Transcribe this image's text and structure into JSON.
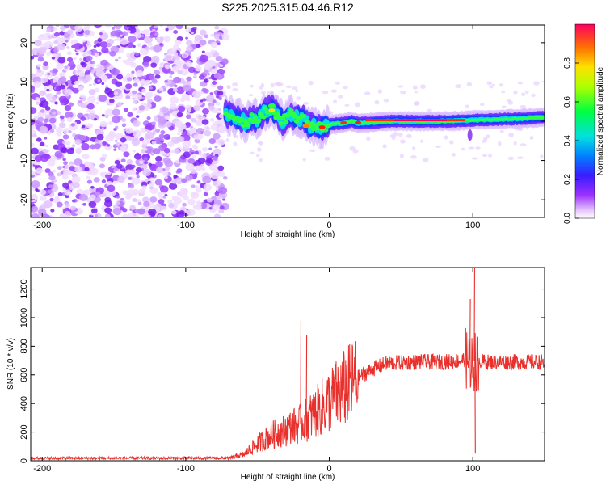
{
  "title": "S225.2025.315.04.46.R12",
  "charts": [
    {
      "type": "heatmap",
      "name": "spectrogram",
      "xlabel": "Height of straight line (km)",
      "ylabel": "Frequency (Hz)",
      "xlim": [
        -208,
        150
      ],
      "ylim": [
        -24.5,
        24.5
      ],
      "xticks": [
        -200,
        -100,
        0,
        100
      ],
      "xtick_labels": [
        "-200",
        "-100",
        "0",
        "100"
      ],
      "yticks": [
        -20,
        -10,
        0,
        10,
        20
      ],
      "ytick_labels": [
        "-20",
        "-10",
        "0",
        "10",
        "20"
      ],
      "noise_region_x": [
        -208,
        -72
      ],
      "signal_ridge": [
        [
          -72,
          2
        ],
        [
          -68,
          1.5
        ],
        [
          -62,
          0.5
        ],
        [
          -58,
          -0.5
        ],
        [
          -54,
          1
        ],
        [
          -50,
          0.5
        ],
        [
          -45,
          2.5
        ],
        [
          -40,
          3
        ],
        [
          -36,
          1.5
        ],
        [
          -32,
          0
        ],
        [
          -28,
          2
        ],
        [
          -22,
          1
        ],
        [
          -18,
          0.5
        ],
        [
          -14,
          -1
        ],
        [
          -10,
          -1.5
        ],
        [
          -5,
          -1.5
        ],
        [
          0,
          -1
        ],
        [
          5,
          -0.5
        ],
        [
          10,
          -0.5
        ],
        [
          15,
          0
        ],
        [
          20,
          -0.5
        ],
        [
          30,
          -0.3
        ],
        [
          40,
          0
        ],
        [
          60,
          0
        ],
        [
          80,
          0
        ],
        [
          95,
          0.2
        ],
        [
          100,
          0.3
        ],
        [
          120,
          0.5
        ],
        [
          140,
          0.8
        ],
        [
          150,
          1
        ]
      ]
    },
    {
      "type": "line",
      "name": "snr",
      "xlabel": "Height of straight line (km)",
      "ylabel": "SNR (10 * v/v)",
      "xlim": [
        -208,
        150
      ],
      "ylim": [
        0,
        1350
      ],
      "xticks": [
        -200,
        -100,
        0,
        100
      ],
      "xtick_labels": [
        "-200",
        "-100",
        "0",
        "100"
      ],
      "yticks": [
        0,
        200,
        400,
        600,
        800,
        1000,
        1200
      ],
      "ytick_labels": [
        "0",
        "200",
        "400",
        "600",
        "800",
        "1000",
        "1200"
      ],
      "color": "#e8312c",
      "envelope": [
        [
          -208,
          18
        ],
        [
          -70,
          18
        ],
        [
          -60,
          40
        ],
        [
          -50,
          120
        ],
        [
          -40,
          180
        ],
        [
          -30,
          220
        ],
        [
          -20,
          260
        ],
        [
          -10,
          330
        ],
        [
          0,
          420
        ],
        [
          10,
          500
        ],
        [
          20,
          580
        ],
        [
          30,
          640
        ],
        [
          40,
          680
        ],
        [
          60,
          690
        ],
        [
          80,
          690
        ],
        [
          90,
          700
        ],
        [
          95,
          710
        ],
        [
          100,
          700
        ],
        [
          110,
          690
        ],
        [
          130,
          690
        ],
        [
          150,
          690
        ]
      ],
      "spikes": [
        {
          "x": -20,
          "y": 980
        },
        {
          "x": -16,
          "y": 880
        },
        {
          "x": 98,
          "y": 1130
        },
        {
          "x": 101,
          "y": 1350
        },
        {
          "x": 101.5,
          "y": 50
        }
      ]
    }
  ],
  "colorbar": {
    "label": "Normalized spectral amplitude",
    "ticks": [
      "0.0",
      "0.2",
      "0.4",
      "0.6",
      "0.8"
    ],
    "tick_values": [
      0.0,
      0.2,
      0.4,
      0.6,
      0.8
    ],
    "range": [
      0,
      1
    ]
  }
}
